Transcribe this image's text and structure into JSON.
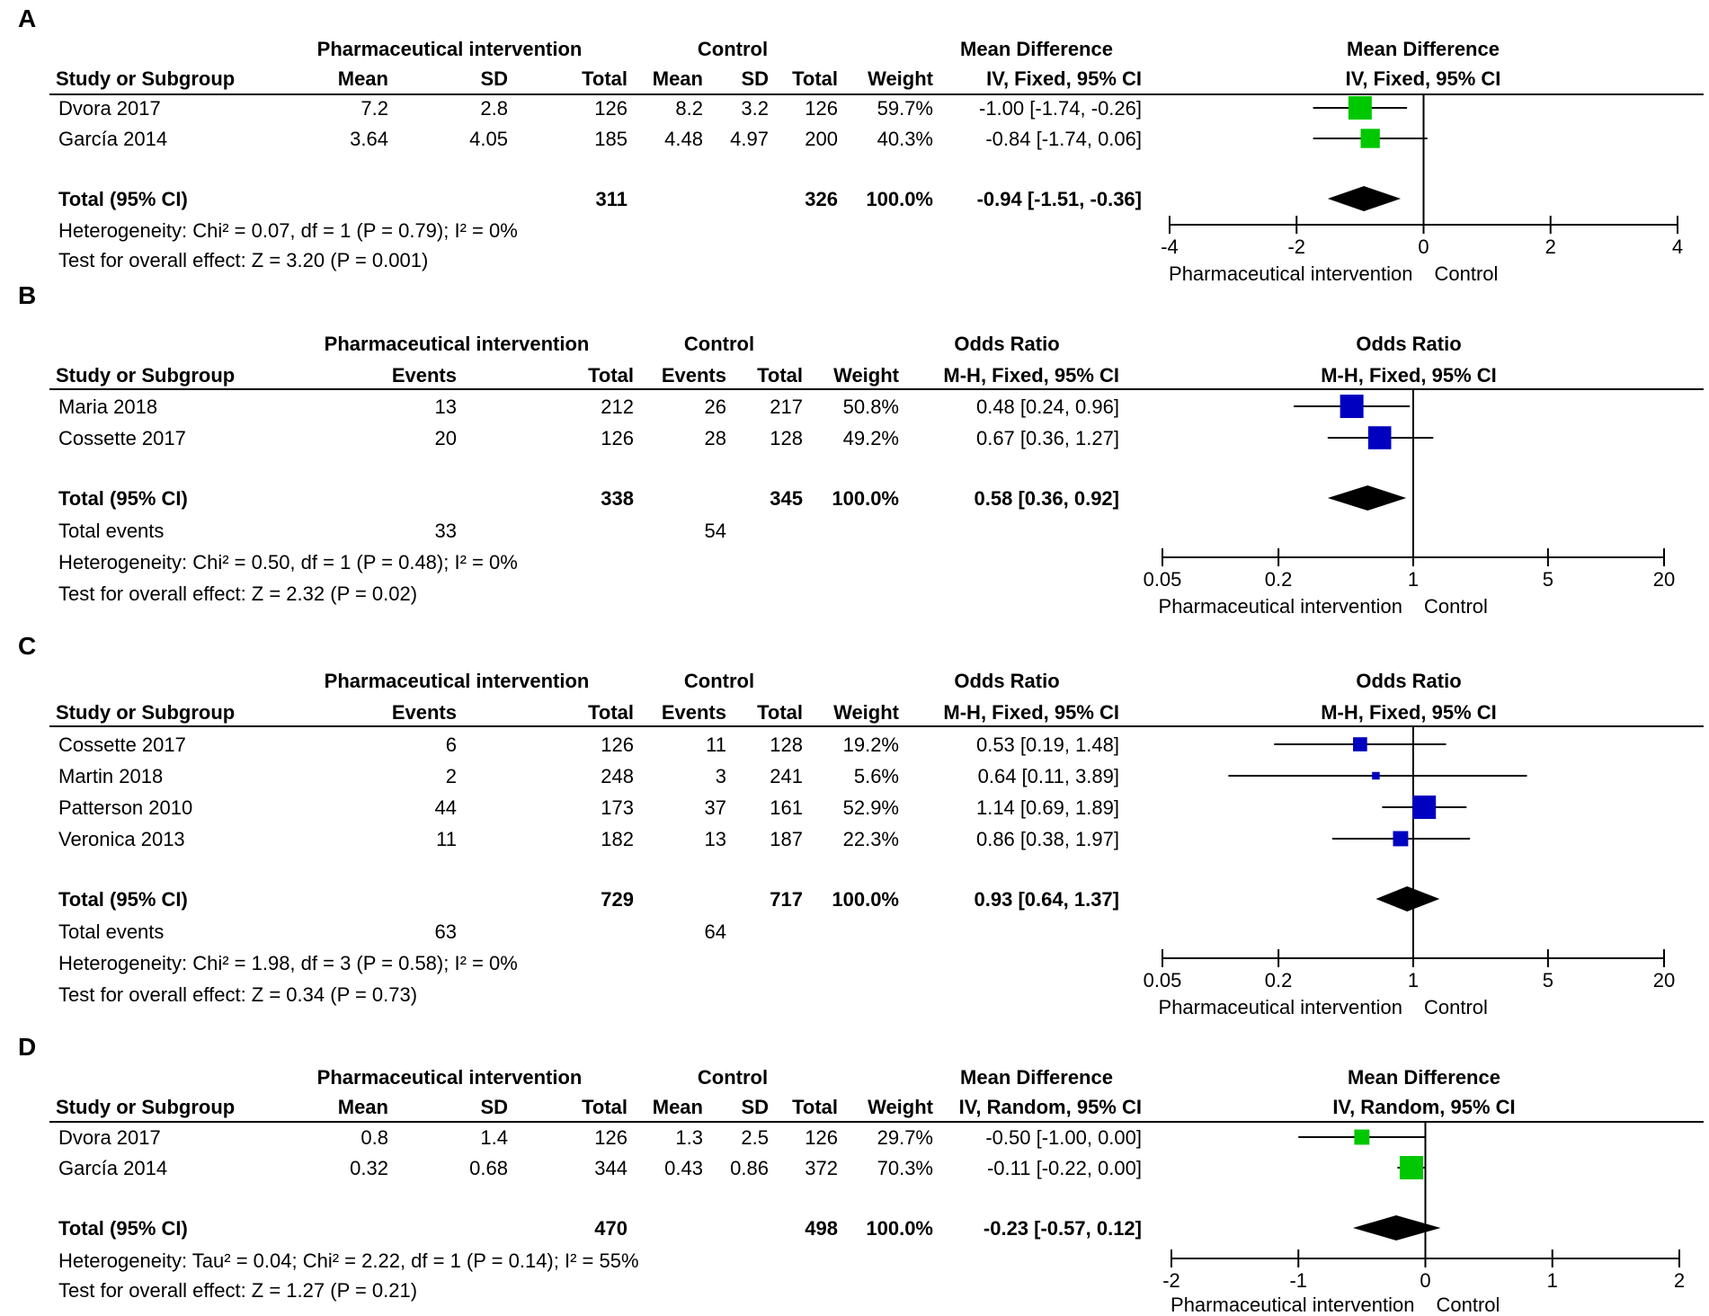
{
  "chart_data": [
    {
      "panel": "A",
      "type": "forest",
      "measure": "Mean Difference",
      "kind": "continuous",
      "log_scale": false,
      "group_header": "Pharmaceutical intervention",
      "control_header": "Control",
      "effect_header": "Mean Difference",
      "effect_method": "IV, Fixed, 95% CI",
      "plot_header": "Mean Difference",
      "plot_method": "IV, Fixed, 95% CI",
      "columns": [
        "Study or Subgroup",
        "Mean",
        "SD",
        "Total",
        "Mean",
        "SD",
        "Total",
        "Weight",
        "IV, Fixed, 95% CI"
      ],
      "marker_color": "#00c800",
      "studies": [
        {
          "name": "Dvora 2017",
          "cells": [
            "7.2",
            "2.8",
            "126",
            "8.2",
            "3.2",
            "126"
          ],
          "weight": "59.7%",
          "ci_text": "-1.00 [-1.74, -0.26]",
          "est": -1.0,
          "lo": -1.74,
          "hi": -0.26,
          "w": 59.7
        },
        {
          "name": "García 2014",
          "cells": [
            "3.64",
            "4.05",
            "185",
            "4.48",
            "4.97",
            "200"
          ],
          "weight": "40.3%",
          "ci_text": "-0.84 [-1.74, 0.06]",
          "est": -0.84,
          "lo": -1.74,
          "hi": 0.06,
          "w": 40.3
        }
      ],
      "total": {
        "label": "Total (95% CI)",
        "total_t": "311",
        "total_c": "326",
        "weight": "100.0%",
        "ci_text": "-0.94 [-1.51, -0.36]",
        "est": -0.94,
        "lo": -1.51,
        "hi": -0.36
      },
      "total_events": null,
      "heterogeneity": "Heterogeneity: Chi² = 0.07, df = 1 (P = 0.79); I² = 0%",
      "overall": "Test for overall effect: Z = 3.20 (P = 0.001)",
      "axis": {
        "min": -4,
        "max": 4,
        "ticks": [
          -4,
          -2,
          0,
          2,
          4
        ],
        "tick_labels": [
          "-4",
          "-2",
          "0",
          "2",
          "4"
        ],
        "null_value": 0
      },
      "favours_left": "Pharmaceutical intervention",
      "favours_right": "Control"
    },
    {
      "panel": "B",
      "type": "forest",
      "measure": "Odds Ratio",
      "kind": "binary",
      "log_scale": true,
      "group_header": "Pharmaceutical intervention",
      "control_header": "Control",
      "effect_header": "Odds Ratio",
      "effect_method": "M-H, Fixed, 95% CI",
      "plot_header": "Odds Ratio",
      "plot_method": "M-H, Fixed, 95% CI",
      "columns": [
        "Study or Subgroup",
        "Events",
        "Total",
        "Events",
        "Total",
        "Weight",
        "M-H, Fixed, 95% CI"
      ],
      "marker_color": "#0000c0",
      "studies": [
        {
          "name": "Maria 2018",
          "cells": [
            "13",
            "212",
            "26",
            "217"
          ],
          "weight": "50.8%",
          "ci_text": "0.48 [0.24, 0.96]",
          "est": 0.48,
          "lo": 0.24,
          "hi": 0.96,
          "w": 50.8
        },
        {
          "name": "Cossette 2017",
          "cells": [
            "20",
            "126",
            "28",
            "128"
          ],
          "weight": "49.2%",
          "ci_text": "0.67 [0.36, 1.27]",
          "est": 0.67,
          "lo": 0.36,
          "hi": 1.27,
          "w": 49.2
        }
      ],
      "total": {
        "label": "Total (95% CI)",
        "total_t": "338",
        "total_c": "345",
        "weight": "100.0%",
        "ci_text": "0.58 [0.36, 0.92]",
        "est": 0.58,
        "lo": 0.36,
        "hi": 0.92
      },
      "total_events": {
        "label": "Total events",
        "t": "33",
        "c": "54"
      },
      "heterogeneity": "Heterogeneity: Chi² = 0.50, df = 1 (P = 0.48); I² = 0%",
      "overall": "Test for overall effect: Z = 2.32 (P = 0.02)",
      "axis": {
        "min": 0.05,
        "max": 20,
        "ticks": [
          0.05,
          0.2,
          1,
          5,
          20
        ],
        "tick_labels": [
          "0.05",
          "0.2",
          "1",
          "5",
          "20"
        ],
        "null_value": 1
      },
      "favours_left": "Pharmaceutical intervention",
      "favours_right": "Control"
    },
    {
      "panel": "C",
      "type": "forest",
      "measure": "Odds Ratio",
      "kind": "binary",
      "log_scale": true,
      "group_header": "Pharmaceutical intervention",
      "control_header": "Control",
      "effect_header": "Odds Ratio",
      "effect_method": "M-H, Fixed, 95% CI",
      "plot_header": "Odds Ratio",
      "plot_method": "M-H, Fixed, 95% CI",
      "columns": [
        "Study or Subgroup",
        "Events",
        "Total",
        "Events",
        "Total",
        "Weight",
        "M-H, Fixed, 95% CI"
      ],
      "marker_color": "#0000c0",
      "studies": [
        {
          "name": "Cossette 2017",
          "cells": [
            "6",
            "126",
            "11",
            "128"
          ],
          "weight": "19.2%",
          "ci_text": "0.53 [0.19, 1.48]",
          "est": 0.53,
          "lo": 0.19,
          "hi": 1.48,
          "w": 19.2
        },
        {
          "name": "Martin 2018",
          "cells": [
            "2",
            "248",
            "3",
            "241"
          ],
          "weight": "5.6%",
          "ci_text": "0.64 [0.11, 3.89]",
          "est": 0.64,
          "lo": 0.11,
          "hi": 3.89,
          "w": 5.6
        },
        {
          "name": "Patterson 2010",
          "cells": [
            "44",
            "173",
            "37",
            "161"
          ],
          "weight": "52.9%",
          "ci_text": "1.14 [0.69, 1.89]",
          "est": 1.14,
          "lo": 0.69,
          "hi": 1.89,
          "w": 52.9
        },
        {
          "name": "Veronica 2013",
          "cells": [
            "11",
            "182",
            "13",
            "187"
          ],
          "weight": "22.3%",
          "ci_text": "0.86 [0.38, 1.97]",
          "est": 0.86,
          "lo": 0.38,
          "hi": 1.97,
          "w": 22.3
        }
      ],
      "total": {
        "label": "Total (95% CI)",
        "total_t": "729",
        "total_c": "717",
        "weight": "100.0%",
        "ci_text": "0.93 [0.64, 1.37]",
        "est": 0.93,
        "lo": 0.64,
        "hi": 1.37
      },
      "total_events": {
        "label": "Total events",
        "t": "63",
        "c": "64"
      },
      "heterogeneity": "Heterogeneity: Chi² = 1.98, df = 3 (P = 0.58); I² = 0%",
      "overall": "Test for overall effect: Z = 0.34 (P = 0.73)",
      "axis": {
        "min": 0.05,
        "max": 20,
        "ticks": [
          0.05,
          0.2,
          1,
          5,
          20
        ],
        "tick_labels": [
          "0.05",
          "0.2",
          "1",
          "5",
          "20"
        ],
        "null_value": 1
      },
      "favours_left": "Pharmaceutical intervention",
      "favours_right": "Control"
    },
    {
      "panel": "D",
      "type": "forest",
      "measure": "Mean Difference",
      "kind": "continuous",
      "log_scale": false,
      "group_header": "Pharmaceutical intervention",
      "control_header": "Control",
      "effect_header": "Mean Difference",
      "effect_method": "IV, Random, 95% CI",
      "plot_header": "Mean Difference",
      "plot_method": "IV, Random, 95% CI",
      "columns": [
        "Study or Subgroup",
        "Mean",
        "SD",
        "Total",
        "Mean",
        "SD",
        "Total",
        "Weight",
        "IV, Random, 95% CI"
      ],
      "marker_color": "#00c800",
      "studies": [
        {
          "name": "Dvora 2017",
          "cells": [
            "0.8",
            "1.4",
            "126",
            "1.3",
            "2.5",
            "126"
          ],
          "weight": "29.7%",
          "ci_text": "-0.50 [-1.00, 0.00]",
          "est": -0.5,
          "lo": -1.0,
          "hi": 0.0,
          "w": 29.7
        },
        {
          "name": "García 2014",
          "cells": [
            "0.32",
            "0.68",
            "344",
            "0.43",
            "0.86",
            "372"
          ],
          "weight": "70.3%",
          "ci_text": "-0.11 [-0.22, 0.00]",
          "est": -0.11,
          "lo": -0.22,
          "hi": 0.0,
          "w": 70.3
        }
      ],
      "total": {
        "label": "Total (95% CI)",
        "total_t": "470",
        "total_c": "498",
        "weight": "100.0%",
        "ci_text": "-0.23 [-0.57, 0.12]",
        "est": -0.23,
        "lo": -0.57,
        "hi": 0.12
      },
      "total_events": null,
      "heterogeneity": "Heterogeneity: Tau² = 0.04; Chi² = 2.22, df = 1 (P = 0.14); I² = 55%",
      "overall": "Test for overall effect: Z = 1.27 (P = 0.21)",
      "axis": {
        "min": -2,
        "max": 2,
        "ticks": [
          -2,
          -1,
          0,
          1,
          2
        ],
        "tick_labels": [
          "-2",
          "-1",
          "0",
          "1",
          "2"
        ],
        "null_value": 0
      },
      "favours_left": "Pharmaceutical intervention",
      "favours_right": "Control"
    }
  ]
}
